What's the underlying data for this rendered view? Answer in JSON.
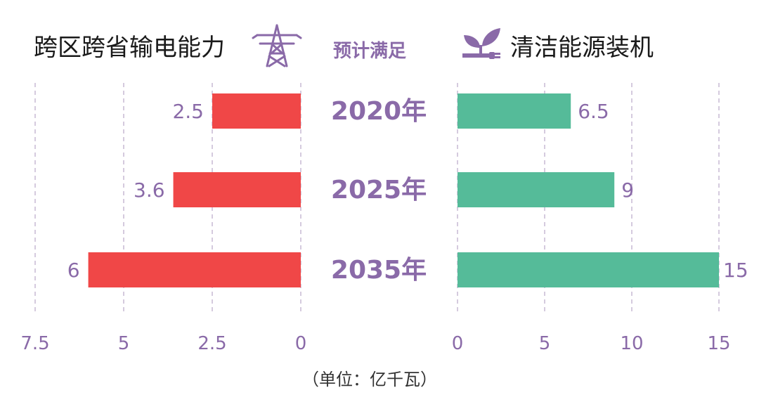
{
  "header": {
    "left_title": "跨区跨省输电能力",
    "middle_title": "预计满足",
    "right_title": "清洁能源装机",
    "left_icon": "power-tower-icon",
    "right_icon": "plant-plug-icon"
  },
  "unit_label": "（单位：亿千瓦）",
  "colors": {
    "left_bar": "#f04747",
    "right_bar": "#55bb99",
    "label": "#8a6aa8",
    "grid": "#b9a8c9"
  },
  "chart_data": [
    {
      "type": "bar",
      "orientation": "horizontal",
      "direction": "leftward",
      "title": "跨区跨省输电能力",
      "categories": [
        "2020年",
        "2025年",
        "2035年"
      ],
      "values": [
        2.5,
        3.6,
        6
      ],
      "xlim": [
        0,
        7.5
      ],
      "ticks": [
        "7.5",
        "5",
        "2.5",
        "0"
      ],
      "grid": true
    },
    {
      "type": "bar",
      "orientation": "horizontal",
      "direction": "rightward",
      "title": "清洁能源装机",
      "categories": [
        "2020年",
        "2025年",
        "2035年"
      ],
      "values": [
        6.5,
        9,
        15
      ],
      "xlim": [
        0,
        15
      ],
      "ticks": [
        "0",
        "5",
        "10",
        "15"
      ],
      "grid": true
    }
  ]
}
